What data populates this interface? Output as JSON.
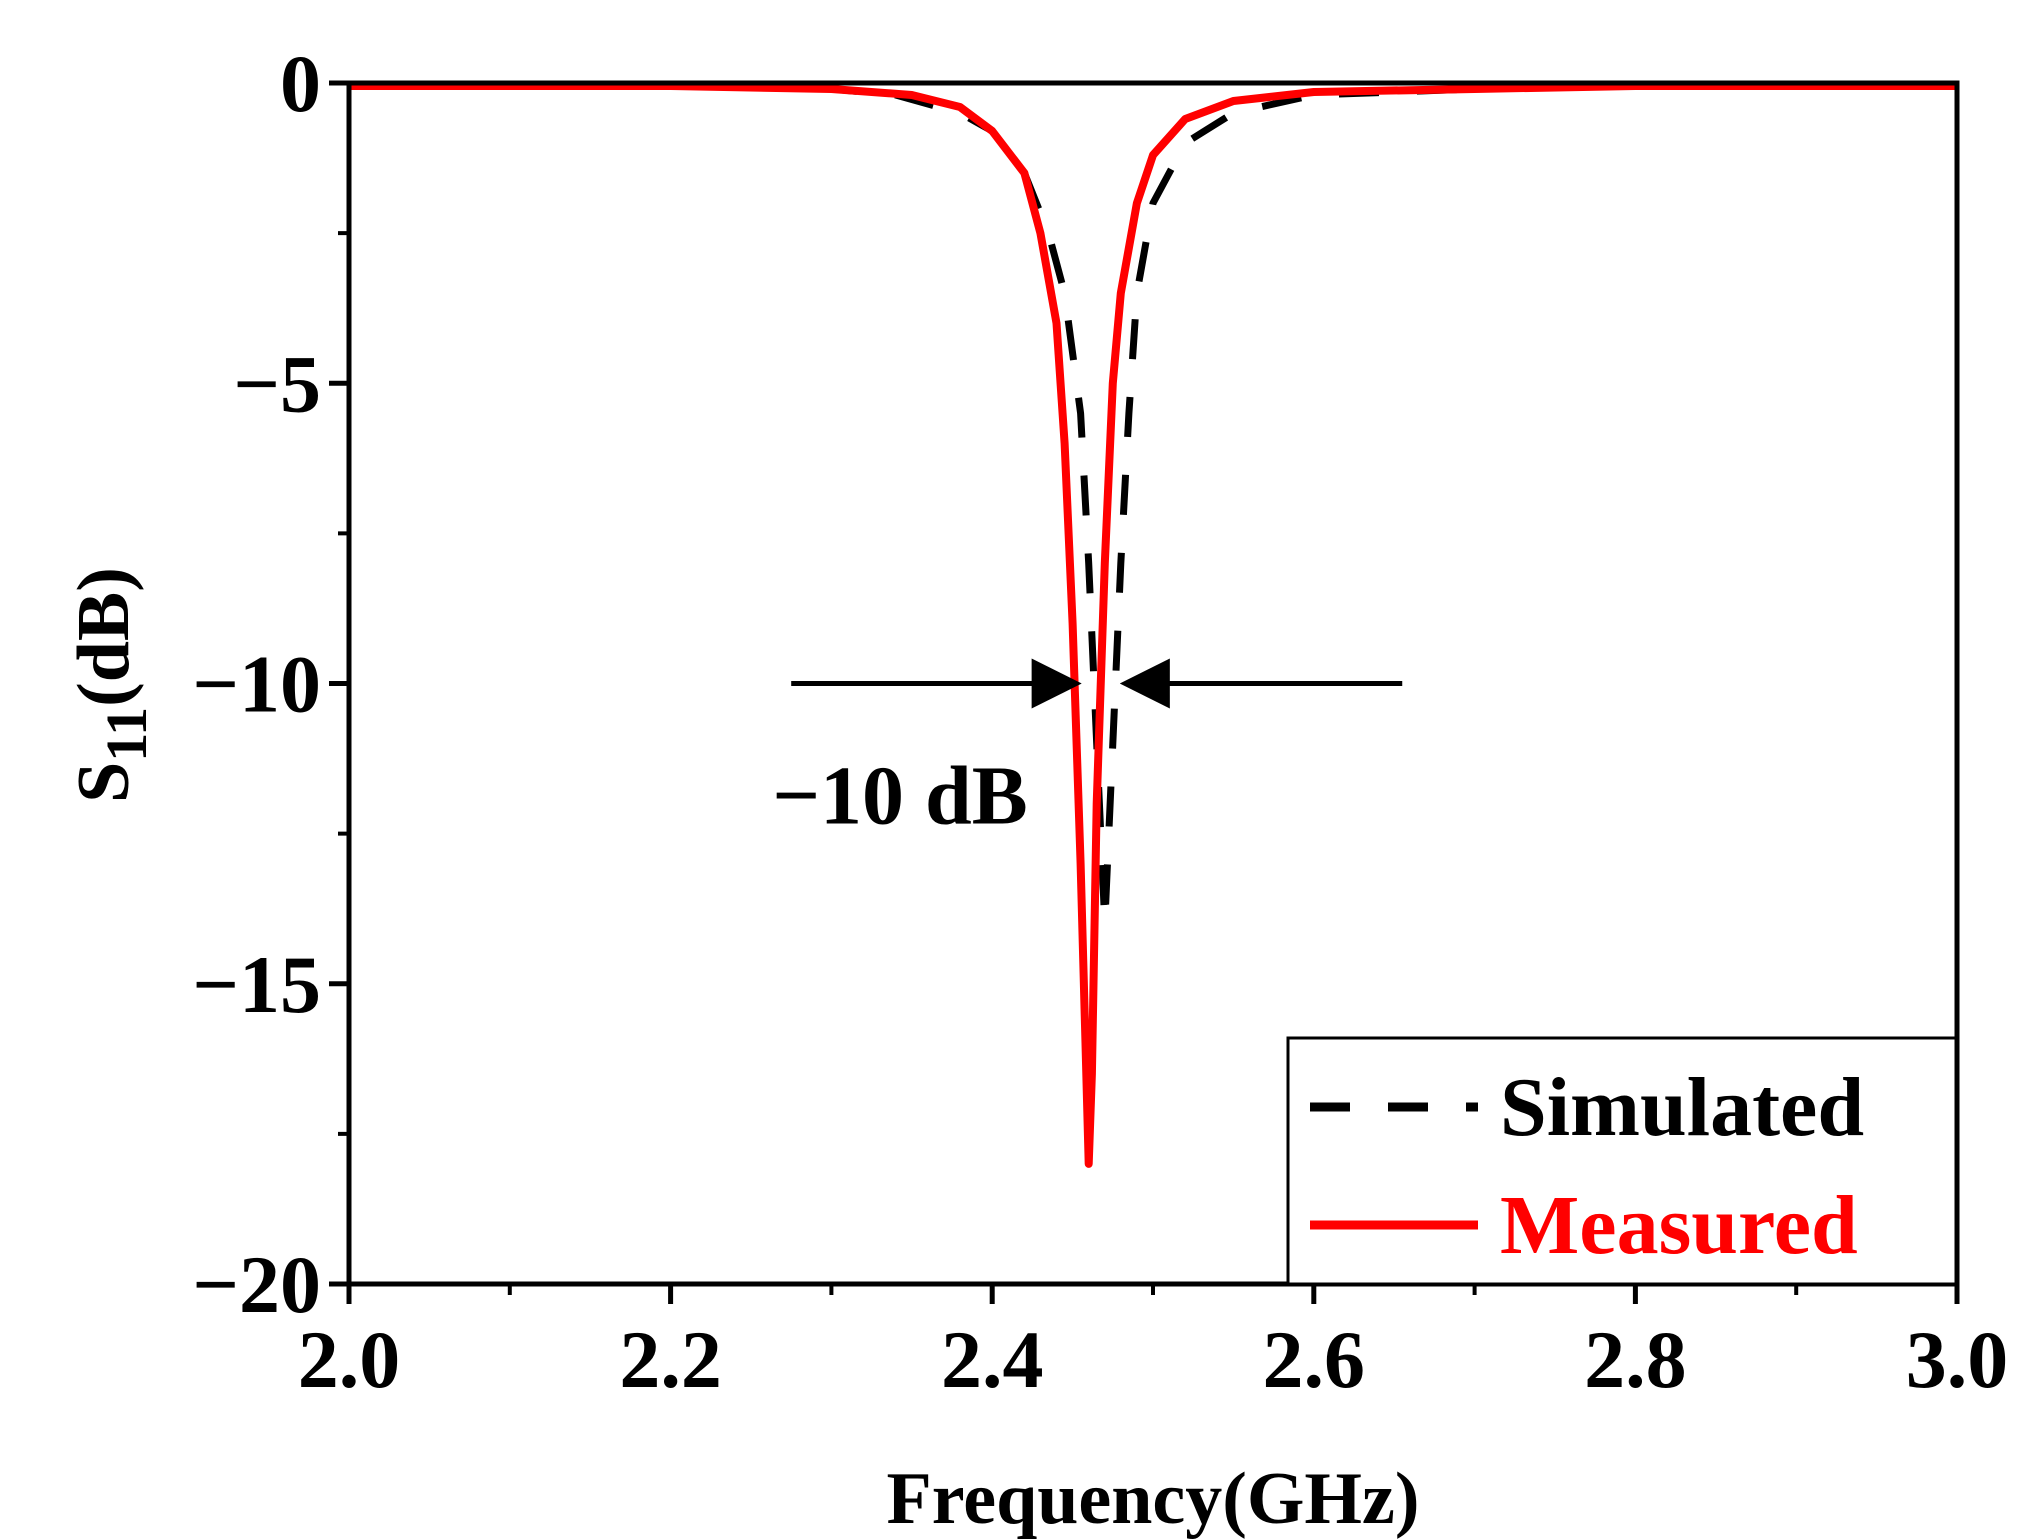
{
  "chart_data": {
    "type": "line",
    "title": "",
    "xlabel": "Frequency(GHz)",
    "ylabel": {
      "main": "S",
      "sub": "11",
      "unit": "(dB)"
    },
    "xlim": [
      2.0,
      3.0
    ],
    "ylim": [
      -20,
      0
    ],
    "x_ticks": [
      2.0,
      2.2,
      2.4,
      2.6,
      2.8,
      3.0
    ],
    "x_tick_labels": [
      "2.0",
      "2.2",
      "2.4",
      "2.6",
      "2.8",
      "3.0"
    ],
    "y_ticks": [
      0,
      -5,
      -10,
      -15,
      -20
    ],
    "y_tick_labels": [
      "0",
      "−5",
      "−10",
      "−15",
      "−20"
    ],
    "grid": false,
    "legend_position": "bottom-right",
    "series": [
      {
        "name": "Simulated",
        "color": "#000000",
        "style": "dashed",
        "x": [
          2.0,
          2.1,
          2.2,
          2.3,
          2.34,
          2.38,
          2.4,
          2.42,
          2.435,
          2.445,
          2.455,
          2.46,
          2.465,
          2.47,
          2.475,
          2.48,
          2.485,
          2.49,
          2.5,
          2.52,
          2.55,
          2.6,
          2.7,
          2.8,
          2.9,
          2.98,
          3.0
        ],
        "values": [
          -0.05,
          -0.05,
          -0.05,
          -0.1,
          -0.2,
          -0.5,
          -0.8,
          -1.5,
          -2.5,
          -3.5,
          -5.5,
          -8.0,
          -11.0,
          -14.0,
          -11.0,
          -8.0,
          -5.5,
          -3.5,
          -2.0,
          -1.0,
          -0.5,
          -0.2,
          -0.1,
          -0.05,
          -0.05,
          -0.05,
          -0.05
        ]
      },
      {
        "name": "Measured",
        "color": "#ff0000",
        "style": "solid",
        "x": [
          2.0,
          2.1,
          2.2,
          2.3,
          2.35,
          2.38,
          2.4,
          2.42,
          2.43,
          2.44,
          2.445,
          2.45,
          2.455,
          2.458,
          2.46,
          2.462,
          2.465,
          2.47,
          2.475,
          2.48,
          2.49,
          2.5,
          2.52,
          2.55,
          2.6,
          2.7,
          2.8,
          2.9,
          2.98,
          3.0
        ],
        "values": [
          -0.05,
          -0.05,
          -0.05,
          -0.1,
          -0.2,
          -0.4,
          -0.8,
          -1.5,
          -2.5,
          -4.0,
          -6.0,
          -9.0,
          -13.0,
          -16.0,
          -18.0,
          -16.5,
          -12.0,
          -8.0,
          -5.0,
          -3.5,
          -2.0,
          -1.2,
          -0.6,
          -0.3,
          -0.15,
          -0.1,
          -0.05,
          -0.05,
          -0.05,
          -0.05
        ]
      }
    ],
    "annotations": [
      {
        "text": "−10 dB",
        "y": -10,
        "x_left": 2.455,
        "x_right": 2.48,
        "arrow_from_left": 2.275,
        "arrow_from_right": 2.655
      }
    ]
  }
}
